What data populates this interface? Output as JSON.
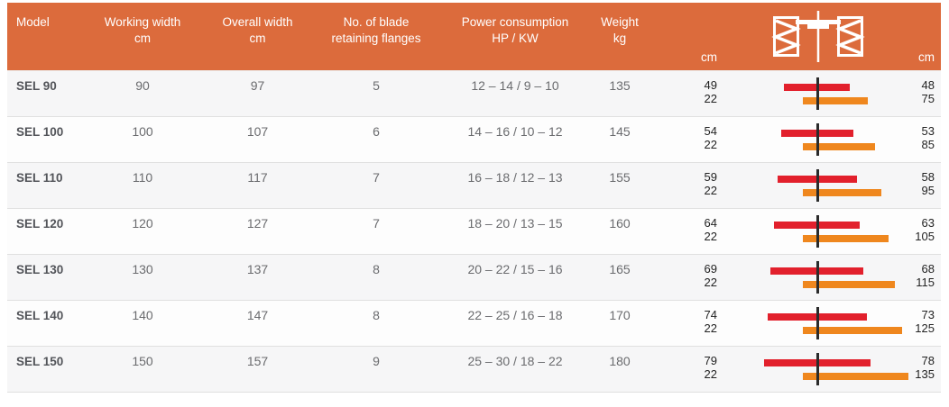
{
  "header": {
    "model": "Model",
    "working_line1": "Working width",
    "working_line2": "cm",
    "overall_line1": "Overall width",
    "overall_line2": "cm",
    "flanges_line1": "No. of blade",
    "flanges_line2": "retaining flanges",
    "power_line1": "Power consumption",
    "power_line2": "HP / KW",
    "weight_line1": "Weight",
    "weight_line2": "kg",
    "left_unit": "cm",
    "right_unit": "cm",
    "icon": "tractor-axle-top-view-icon",
    "background": "#dc6b3c",
    "text_color": "#ffffff"
  },
  "colors": {
    "bar_centered_red": "#e2202c",
    "bar_offset_orange": "#ef871e",
    "tractor_centerline": "#2b2b2b",
    "row_separator": "#e0e0e0",
    "row_alt_background": "#f6f6f7"
  },
  "chart_data": {
    "type": "table",
    "columns": [
      "Model",
      "Working width cm",
      "Overall width cm",
      "No. of blade retaining flanges",
      "Power consumption HP / KW",
      "Weight kg",
      "cm",
      "cm"
    ],
    "bars_meaning": {
      "red": "machine width centered on tractor centerline, left/right extension in cm",
      "orange": "machine width side-shifted, left/right extension in cm"
    },
    "rows": [
      {
        "model": "SEL 90",
        "working_width_cm": 90,
        "overall_width_cm": 97,
        "blade_flanges": 5,
        "power_hp_kw": "12 – 14 / 9 – 10",
        "weight_kg": 135,
        "red_left_cm": 49,
        "red_right_cm": 48,
        "orange_left_cm": 22,
        "orange_right_cm": 75
      },
      {
        "model": "SEL 100",
        "working_width_cm": 100,
        "overall_width_cm": 107,
        "blade_flanges": 6,
        "power_hp_kw": "14 – 16 / 10 – 12",
        "weight_kg": 145,
        "red_left_cm": 54,
        "red_right_cm": 53,
        "orange_left_cm": 22,
        "orange_right_cm": 85
      },
      {
        "model": "SEL 110",
        "working_width_cm": 110,
        "overall_width_cm": 117,
        "blade_flanges": 7,
        "power_hp_kw": "16 – 18 / 12 – 13",
        "weight_kg": 155,
        "red_left_cm": 59,
        "red_right_cm": 58,
        "orange_left_cm": 22,
        "orange_right_cm": 95
      },
      {
        "model": "SEL 120",
        "working_width_cm": 120,
        "overall_width_cm": 127,
        "blade_flanges": 7,
        "power_hp_kw": "18 – 20 / 13 – 15",
        "weight_kg": 160,
        "red_left_cm": 64,
        "red_right_cm": 63,
        "orange_left_cm": 22,
        "orange_right_cm": 105
      },
      {
        "model": "SEL 130",
        "working_width_cm": 130,
        "overall_width_cm": 137,
        "blade_flanges": 8,
        "power_hp_kw": "20 – 22 / 15 – 16",
        "weight_kg": 165,
        "red_left_cm": 69,
        "red_right_cm": 68,
        "orange_left_cm": 22,
        "orange_right_cm": 115
      },
      {
        "model": "SEL 140",
        "working_width_cm": 140,
        "overall_width_cm": 147,
        "blade_flanges": 8,
        "power_hp_kw": "22 – 25 / 16 – 18",
        "weight_kg": 170,
        "red_left_cm": 74,
        "red_right_cm": 73,
        "orange_left_cm": 22,
        "orange_right_cm": 125
      },
      {
        "model": "SEL 150",
        "working_width_cm": 150,
        "overall_width_cm": 157,
        "blade_flanges": 9,
        "power_hp_kw": "25 – 30 / 18 – 22",
        "weight_kg": 180,
        "red_left_cm": 79,
        "red_right_cm": 78,
        "orange_left_cm": 22,
        "orange_right_cm": 135
      }
    ]
  }
}
